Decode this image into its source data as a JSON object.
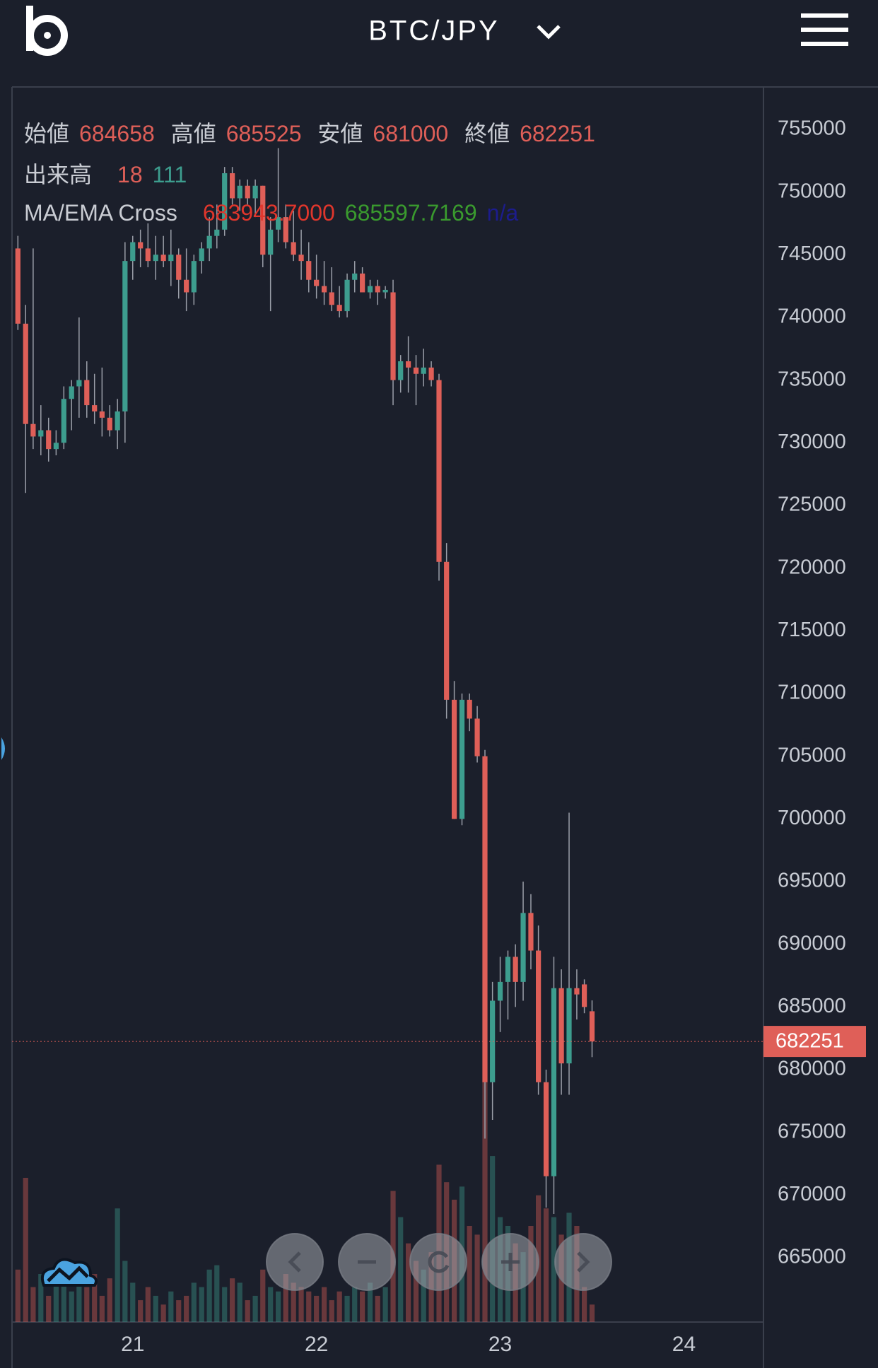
{
  "header": {
    "pair": "BTC/JPY"
  },
  "chart_data": {
    "type": "candlestick",
    "x": [
      20.375,
      20.417,
      20.458,
      20.5,
      20.542,
      20.583,
      20.625,
      20.667,
      20.708,
      20.75,
      20.792,
      20.833,
      20.875,
      20.917,
      20.958,
      21,
      21.042,
      21.083,
      21.125,
      21.167,
      21.208,
      21.25,
      21.292,
      21.333,
      21.375,
      21.417,
      21.458,
      21.5,
      21.542,
      21.583,
      21.625,
      21.667,
      21.708,
      21.75,
      21.792,
      21.833,
      21.875,
      21.917,
      21.958,
      22,
      22.042,
      22.083,
      22.125,
      22.167,
      22.208,
      22.25,
      22.292,
      22.333,
      22.375,
      22.417,
      22.458,
      22.5,
      22.542,
      22.583,
      22.625,
      22.667,
      22.708,
      22.75,
      22.792,
      22.833,
      22.875,
      22.917,
      22.958,
      23,
      23.042,
      23.083,
      23.125,
      23.167,
      23.208,
      23.25,
      23.292,
      23.333,
      23.375,
      23.417,
      23.458,
      23.5
    ],
    "open": [
      745500,
      739500,
      731500,
      730500,
      731000,
      729500,
      730000,
      733500,
      734500,
      735000,
      733000,
      732500,
      732000,
      731000,
      732500,
      744500,
      746000,
      745500,
      744500,
      745000,
      744500,
      745000,
      743000,
      742000,
      744500,
      745500,
      746500,
      747000,
      751500,
      749500,
      750500,
      749500,
      750500,
      745000,
      747000,
      748000,
      746000,
      745000,
      744500,
      743000,
      742500,
      742000,
      741000,
      740500,
      743000,
      743500,
      742000,
      742500,
      742000,
      742000,
      735000,
      736500,
      736000,
      735500,
      736000,
      735000,
      720500,
      709500,
      700000,
      709500,
      708000,
      705000,
      679000,
      685500,
      687000,
      689000,
      687000,
      692500,
      689500,
      679000,
      671500,
      686500,
      680500,
      686500,
      686800,
      684658
    ],
    "high": [
      746500,
      741000,
      745500,
      733000,
      732000,
      731000,
      734500,
      735000,
      740000,
      736500,
      735500,
      736000,
      733000,
      733500,
      746000,
      746500,
      747000,
      747500,
      746500,
      746500,
      747000,
      745500,
      745500,
      745000,
      746000,
      748000,
      749000,
      752000,
      752000,
      751000,
      751000,
      751000,
      750500,
      748000,
      753500,
      749000,
      748500,
      747000,
      746000,
      745000,
      744500,
      744000,
      742500,
      743500,
      744500,
      744000,
      743000,
      743000,
      742500,
      743000,
      737000,
      738500,
      737000,
      737500,
      736500,
      735500,
      722000,
      711000,
      710000,
      710000,
      709000,
      705500,
      687000,
      689000,
      689500,
      690000,
      695000,
      694000,
      691500,
      680000,
      689000,
      688000,
      700500,
      688000,
      687200,
      685525
    ],
    "low": [
      739000,
      726000,
      729500,
      729000,
      728500,
      729000,
      729500,
      731000,
      732000,
      732000,
      731500,
      730500,
      730500,
      729500,
      730000,
      743000,
      744000,
      744000,
      743000,
      744000,
      742500,
      741500,
      740500,
      741000,
      743500,
      744500,
      745500,
      746500,
      749000,
      748500,
      749000,
      748000,
      744000,
      740500,
      746000,
      745500,
      744500,
      743000,
      742000,
      741500,
      741000,
      740500,
      740000,
      740000,
      742000,
      742000,
      741500,
      741000,
      741500,
      733000,
      734000,
      734000,
      733000,
      734500,
      734500,
      719000,
      708000,
      700000,
      699500,
      707000,
      704500,
      674500,
      676000,
      683000,
      684000,
      685000,
      685500,
      688000,
      678000,
      669000,
      668500,
      678000,
      678000,
      684000,
      684500,
      681000
    ],
    "close": [
      739500,
      731500,
      730500,
      731000,
      729500,
      730000,
      733500,
      734500,
      735000,
      733000,
      732500,
      732000,
      731000,
      732500,
      744500,
      746000,
      745500,
      744500,
      745000,
      744500,
      745000,
      743000,
      742000,
      744500,
      745500,
      746500,
      747000,
      751500,
      749500,
      750500,
      749500,
      750500,
      745000,
      747000,
      748000,
      746000,
      745000,
      744500,
      743000,
      742500,
      742000,
      741000,
      740500,
      743000,
      743500,
      742000,
      742500,
      742000,
      742200,
      735000,
      736500,
      736000,
      735500,
      736000,
      735000,
      720500,
      709500,
      700000,
      709500,
      708000,
      705000,
      679000,
      685500,
      687000,
      689000,
      687000,
      692500,
      689500,
      679000,
      671500,
      686500,
      680500,
      686500,
      686000,
      685000,
      682251
    ],
    "volume": [
      60,
      165,
      40,
      55,
      30,
      45,
      50,
      35,
      45,
      40,
      55,
      30,
      50,
      130,
      70,
      45,
      25,
      40,
      30,
      20,
      35,
      25,
      30,
      45,
      40,
      60,
      65,
      40,
      50,
      45,
      25,
      30,
      60,
      40,
      35,
      55,
      45,
      40,
      35,
      30,
      40,
      25,
      35,
      30,
      40,
      35,
      45,
      30,
      40,
      150,
      120,
      90,
      70,
      60,
      80,
      180,
      160,
      140,
      155,
      110,
      100,
      275,
      190,
      120,
      110,
      90,
      80,
      110,
      145,
      130,
      120,
      100,
      125,
      110,
      40,
      20
    ],
    "xlim": [
      20.343,
      24.433
    ],
    "xticks": [
      21,
      22,
      23,
      24
    ],
    "ylim": [
      659870,
      758380
    ],
    "yticks": [
      665000,
      670000,
      675000,
      680000,
      685000,
      690000,
      695000,
      700000,
      705000,
      710000,
      715000,
      720000,
      725000,
      730000,
      735000,
      740000,
      745000,
      750000,
      755000
    ],
    "up_color": "#3d9d8e",
    "down_color": "#df5f58",
    "legend": {
      "open_label": "始値",
      "high_label": "高値",
      "low_label": "安値",
      "close_label": "終値",
      "volume_label": "出来高",
      "volume_values": [
        18,
        111
      ],
      "indicator_label": "MA/EMA Cross",
      "indicator_values": [
        "683943.7000",
        "685597.7169",
        "n/a"
      ],
      "indicator_colors": [
        "#e0362c",
        "#3a9a2e",
        "#1c1c8c"
      ]
    }
  }
}
